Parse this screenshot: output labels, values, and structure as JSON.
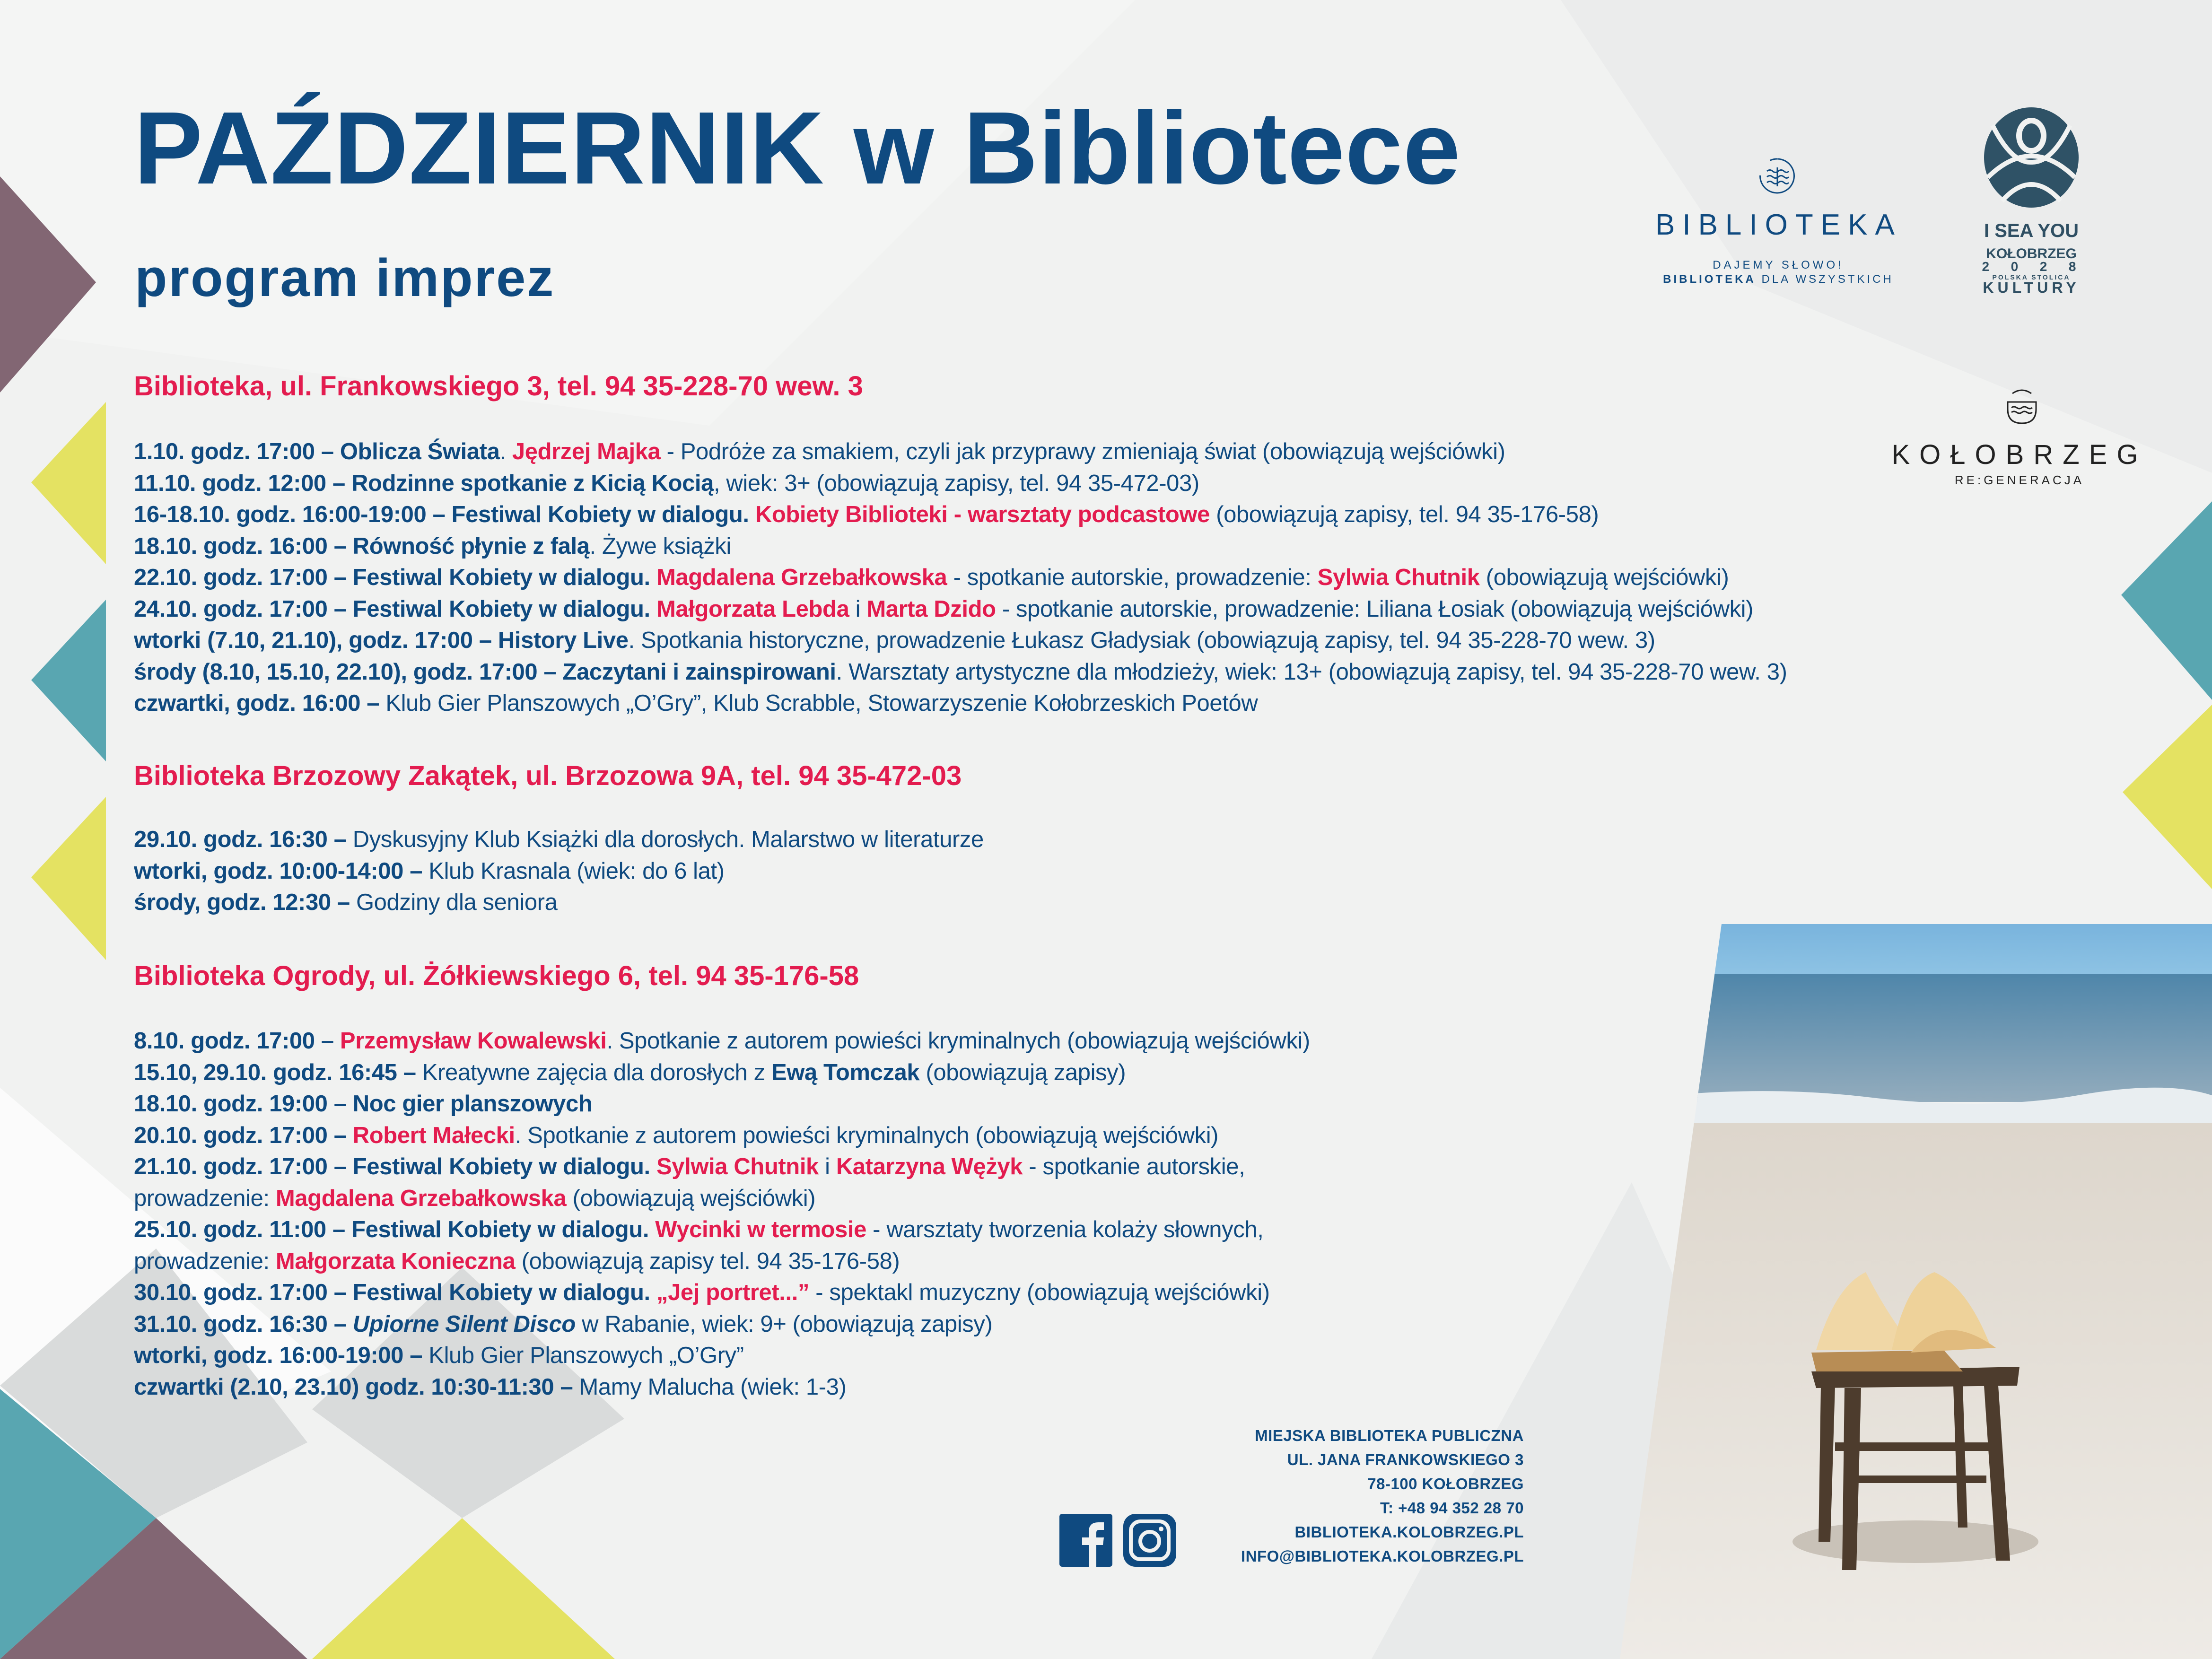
{
  "title": "PAŹDZIERNIK w Bibliotece",
  "subtitle": "program imprez",
  "colors": {
    "brand_blue": "#0f4a80",
    "accent_red": "#e31c4f",
    "purple": "#826673",
    "yellow": "#e4e262",
    "teal": "#59a6b1",
    "background": "#f1f2f1"
  },
  "sections": [
    {
      "heading": "Biblioteka, ul. Frankowskiego 3, tel. 94 35-228-70 wew. 3",
      "lines": [
        [
          {
            "s": "b",
            "t": "1.10. godz. 17:00 – Oblicza Świata"
          },
          {
            "s": "n",
            "t": ". "
          },
          {
            "s": "r",
            "t": "Jędrzej Majka"
          },
          {
            "s": "n",
            "t": " - Podróże za smakiem, czyli jak przyprawy zmieniają świat (obowiązują wejściówki)"
          }
        ],
        [
          {
            "s": "b",
            "t": "11.10. godz. 12:00 – Rodzinne spotkanie z Kicią Kocią"
          },
          {
            "s": "n",
            "t": ", wiek: 3+ (obowiązują zapisy, tel. 94 35-472-03)"
          }
        ],
        [
          {
            "s": "b",
            "t": "16-18.10. godz. 16:00-19:00 – Festiwal Kobiety w dialogu. "
          },
          {
            "s": "r",
            "t": "Kobiety Biblioteki - warsztaty podcastowe"
          },
          {
            "s": "n",
            "t": " (obowiązują zapisy, tel. 94 35-176-58)"
          }
        ],
        [
          {
            "s": "b",
            "t": "18.10. godz. 16:00 – Równość płynie z falą"
          },
          {
            "s": "n",
            "t": ". Żywe książki"
          }
        ],
        [
          {
            "s": "b",
            "t": "22.10. godz. 17:00 – Festiwal Kobiety w dialogu. "
          },
          {
            "s": "r",
            "t": "Magdalena Grzebałkowska"
          },
          {
            "s": "n",
            "t": " - spotkanie autorskie, prowadzenie: "
          },
          {
            "s": "r",
            "t": "Sylwia Chutnik"
          },
          {
            "s": "n",
            "t": " (obowiązują wejściówki)"
          }
        ],
        [
          {
            "s": "b",
            "t": "24.10. godz. 17:00 – Festiwal Kobiety w dialogu. "
          },
          {
            "s": "r",
            "t": "Małgorzata Lebda"
          },
          {
            "s": "n",
            "t": " i "
          },
          {
            "s": "r",
            "t": "Marta Dzido"
          },
          {
            "s": "n",
            "t": " - spotkanie autorskie, prowadzenie: Liliana Łosiak (obowiązują wejściówki)"
          }
        ],
        [
          {
            "s": "b",
            "t": "wtorki (7.10, 21.10), godz. 17:00 – History Live"
          },
          {
            "s": "n",
            "t": ". Spotkania historyczne, prowadzenie Łukasz Gładysiak (obowiązują zapisy, tel. 94 35-228-70 wew. 3)"
          }
        ],
        [
          {
            "s": "b",
            "t": "środy (8.10, 15.10, 22.10), godz. 17:00 – Zaczytani i zainspirowani"
          },
          {
            "s": "n",
            "t": ". Warsztaty artystyczne dla młodzieży, wiek: 13+ (obowiązują zapisy, tel. 94 35-228-70 wew. 3)"
          }
        ],
        [
          {
            "s": "b",
            "t": "czwartki, godz. 16:00 –"
          },
          {
            "s": "n",
            "t": " Klub Gier Planszowych „O’Gry”, Klub Scrabble, Stowarzyszenie Kołobrzeskich Poetów"
          }
        ]
      ]
    },
    {
      "heading": "Biblioteka Brzozowy Zakątek, ul. Brzozowa 9A, tel. 94 35-472-03",
      "lines": [
        [
          {
            "s": "b",
            "t": "29.10. godz. 16:30 –"
          },
          {
            "s": "n",
            "t": " Dyskusyjny Klub Książki dla dorosłych. Malarstwo w literaturze"
          }
        ],
        [
          {
            "s": "b",
            "t": "wtorki, godz. 10:00-14:00 –"
          },
          {
            "s": "n",
            "t": " Klub Krasnala (wiek: do 6 lat)"
          }
        ],
        [
          {
            "s": "b",
            "t": "środy, godz. 12:30 –"
          },
          {
            "s": "n",
            "t": " Godziny dla seniora"
          }
        ]
      ]
    },
    {
      "heading": "Biblioteka Ogrody, ul. Żółkiewskiego 6, tel. 94 35-176-58",
      "lines": [
        [
          {
            "s": "b",
            "t": "8.10. godz. 17:00 – "
          },
          {
            "s": "r",
            "t": "Przemysław Kowalewski"
          },
          {
            "s": "n",
            "t": ". Spotkanie z autorem powieści kryminalnych (obowiązują wejściówki)"
          }
        ],
        [
          {
            "s": "b",
            "t": "15.10, 29.10. godz. 16:45 –"
          },
          {
            "s": "n",
            "t": " Kreatywne zajęcia dla dorosłych z "
          },
          {
            "s": "b",
            "t": "Ewą Tomczak"
          },
          {
            "s": "n",
            "t": " (obowiązują zapisy)"
          }
        ],
        [
          {
            "s": "b",
            "t": "18.10. godz. 19:00 – Noc gier planszowych"
          }
        ],
        [
          {
            "s": "b",
            "t": "20.10. godz. 17:00 – "
          },
          {
            "s": "r",
            "t": "Robert Małecki"
          },
          {
            "s": "n",
            "t": ". Spotkanie z autorem powieści kryminalnych (obowiązują wejściówki)"
          }
        ],
        [
          {
            "s": "b",
            "t": "21.10. godz. 17:00 – Festiwal Kobiety w dialogu. "
          },
          {
            "s": "r",
            "t": "Sylwia Chutnik"
          },
          {
            "s": "n",
            "t": " i "
          },
          {
            "s": "r",
            "t": "Katarzyna Wężyk"
          },
          {
            "s": "n",
            "t": " - spotkanie autorskie,"
          }
        ],
        [
          {
            "s": "n",
            "t": "prowadzenie: "
          },
          {
            "s": "r",
            "t": "Magdalena Grzebałkowska"
          },
          {
            "s": "n",
            "t": " (obowiązują wejściówki)"
          }
        ],
        [
          {
            "s": "b",
            "t": "25.10. godz. 11:00 – Festiwal Kobiety w dialogu. "
          },
          {
            "s": "r",
            "t": "Wycinki w termosie"
          },
          {
            "s": "n",
            "t": " - warsztaty tworzenia kolaży słownych,"
          }
        ],
        [
          {
            "s": "n",
            "t": "prowadzenie: "
          },
          {
            "s": "r",
            "t": "Małgorzata Konieczna"
          },
          {
            "s": "n",
            "t": " (obowiązują zapisy tel. 94 35-176-58)"
          }
        ],
        [
          {
            "s": "b",
            "t": "30.10. godz. 17:00 – Festiwal Kobiety w dialogu. "
          },
          {
            "s": "r",
            "t": "„Jej portret...”"
          },
          {
            "s": "n",
            "t": " - spektakl muzyczny (obowiązują wejściówki)"
          }
        ],
        [
          {
            "s": "b",
            "t": "31.10. godz. 16:30 – "
          },
          {
            "s": "i",
            "t": "Upiorne Silent Disco"
          },
          {
            "s": "n",
            "t": " w Rabanie, wiek: 9+ (obowiązują zapisy)"
          }
        ],
        [
          {
            "s": "b",
            "t": "wtorki, godz. 16:00-19:00 –"
          },
          {
            "s": "n",
            "t": " Klub Gier Planszowych „O’Gry”"
          }
        ],
        [
          {
            "s": "b",
            "t": "czwartki (2.10, 23.10) godz. 10:30-11:30 –"
          },
          {
            "s": "n",
            "t": " Mamy Malucha (wiek: 1-3)"
          }
        ]
      ]
    }
  ],
  "logos": {
    "biblioteka": {
      "name": "BIBLIOTEKA",
      "tagline1": "DAJEMY SŁOWO!",
      "tagline2_bold": "BIBLIOTEKA",
      "tagline2_rest": " DLA WSZYSTKICH",
      "icon": "waves-book-icon"
    },
    "iseayou": {
      "line1": "I SEA YOU",
      "line2": "KOŁOBRZEG",
      "line3": "2  0  2  8",
      "line4": "POLSKA STOLICA",
      "line5": "KULTURY",
      "icon": "i-sea-you-emblem-icon"
    },
    "kolobrzeg": {
      "name": "KOŁOBRZEG",
      "tagline": "RE:GENERACJA",
      "icon": "face-waves-icon"
    }
  },
  "footer": {
    "lines": [
      "MIEJSKA BIBLIOTEKA PUBLICZNA",
      "UL. JANA FRANKOWSKIEGO 3",
      "78-100 KOŁOBRZEG",
      "T: +48 94 352 28 70",
      "BIBLIOTEKA.KOLOBRZEG.PL",
      "INFO@BIBLIOTEKA.KOLOBRZEG.PL"
    ],
    "social": [
      "facebook-icon",
      "instagram-icon"
    ]
  }
}
